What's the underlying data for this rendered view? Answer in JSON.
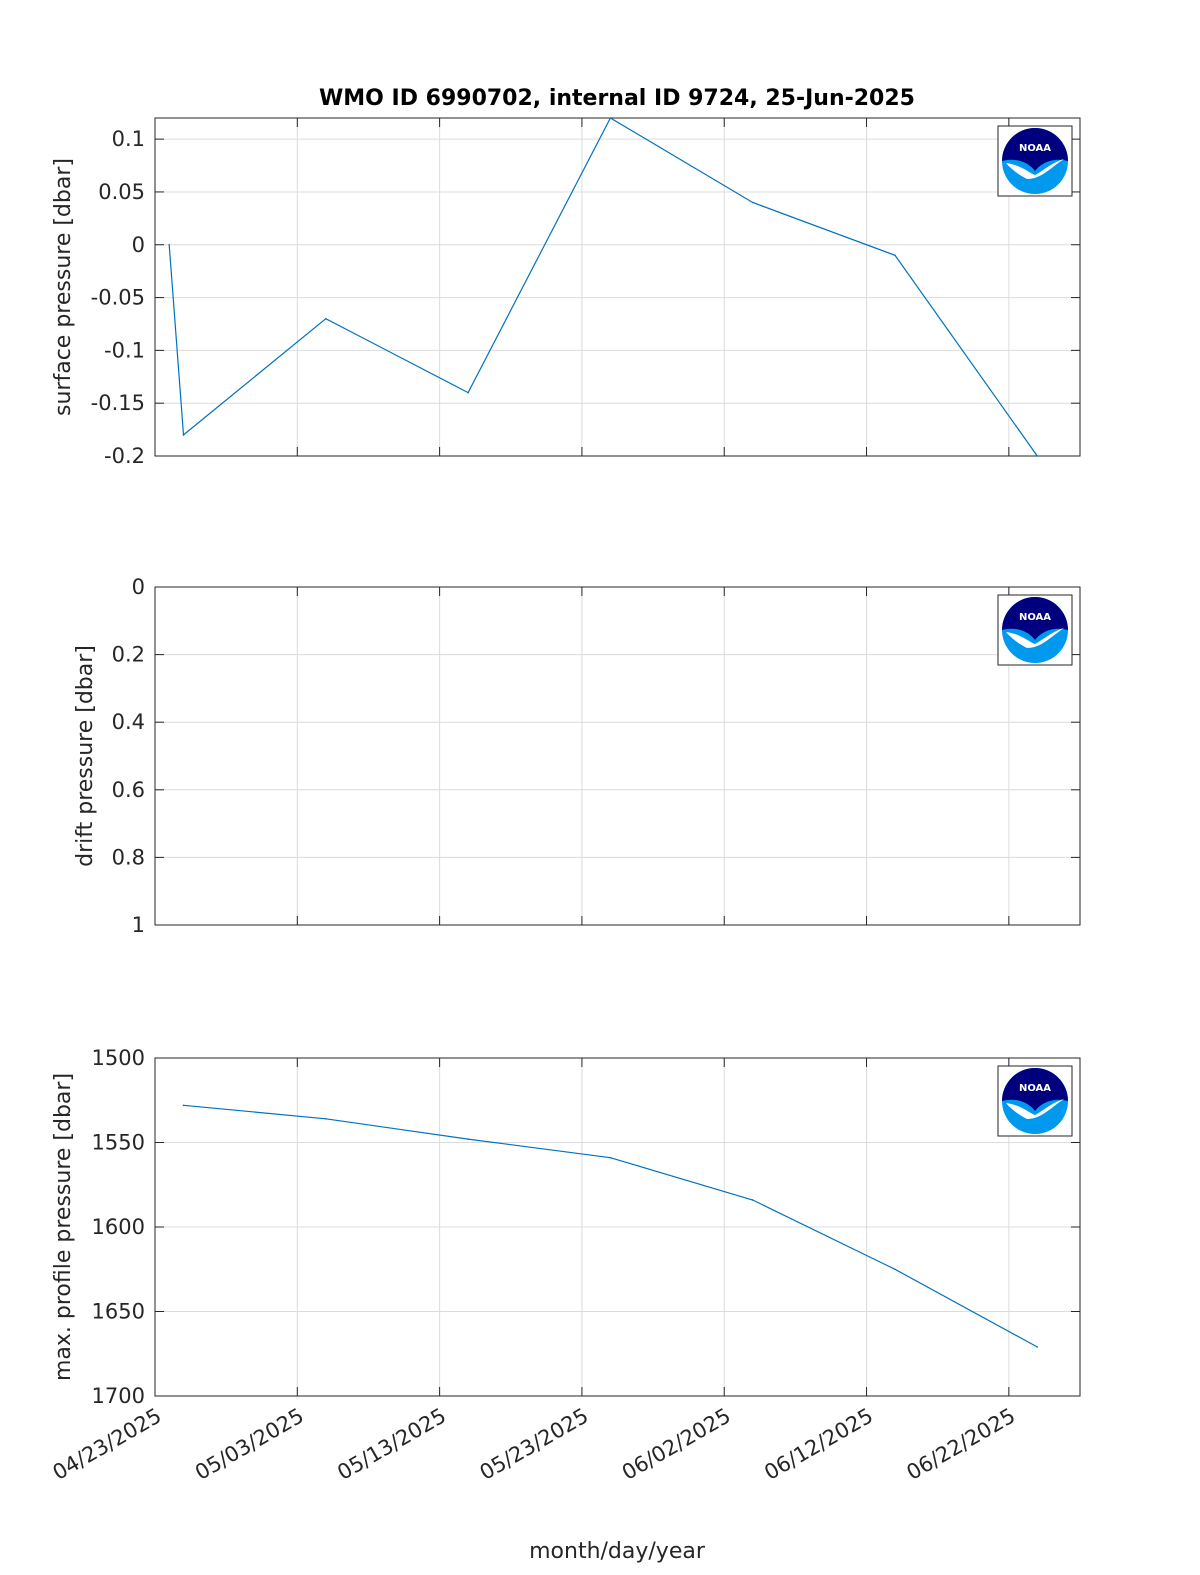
{
  "title": "WMO ID 6990702, internal ID 9724, 25-Jun-2025",
  "xlabel": "month/day/year",
  "logo_text": "NOAA",
  "colors": {
    "series": "#0072BD",
    "logo_dark": "#00007F",
    "logo_light": "#0099EE"
  },
  "chart_data": [
    {
      "type": "line",
      "ylabel": "surface pressure [dbar]",
      "ylim": [
        -0.2,
        0.12
      ],
      "yticks": [
        0.1,
        0.05,
        0,
        -0.05,
        -0.1,
        -0.15,
        -0.2
      ],
      "ytick_labels": [
        "0.1",
        "0.05",
        "0",
        "-0.05",
        "-0.1",
        "-0.15",
        "-0.2"
      ],
      "y_reversed": false,
      "x": [
        "04/24/2025",
        "04/25/2025",
        "05/05/2025",
        "05/15/2025",
        "05/25/2025",
        "06/04/2025",
        "06/14/2025",
        "06/24/2025"
      ],
      "y": [
        0,
        -0.18,
        -0.07,
        -0.14,
        0.12,
        0.04,
        -0.01,
        -0.2
      ],
      "grid": true
    },
    {
      "type": "line",
      "ylabel": "drift pressure [dbar]",
      "ylim": [
        0,
        1
      ],
      "yticks": [
        0,
        0.2,
        0.4,
        0.6,
        0.8,
        1
      ],
      "ytick_labels": [
        "0",
        "0.2",
        "0.4",
        "0.6",
        "0.8",
        "1"
      ],
      "y_reversed": true,
      "x": [],
      "y": [],
      "grid": true
    },
    {
      "type": "line",
      "ylabel": "max. profile pressure [dbar]",
      "ylim": [
        1500,
        1700
      ],
      "yticks": [
        1500,
        1550,
        1600,
        1650,
        1700
      ],
      "ytick_labels": [
        "1500",
        "1550",
        "1600",
        "1650",
        "1700"
      ],
      "y_reversed": true,
      "x": [
        "04/25/2025",
        "05/05/2025",
        "05/15/2025",
        "05/25/2025",
        "06/04/2025",
        "06/14/2025",
        "06/24/2025"
      ],
      "y": [
        1528,
        1536,
        1548,
        1559,
        1584,
        1625,
        1671
      ],
      "grid": true
    }
  ],
  "x_axis": {
    "xlim": [
      "04/23/2025",
      "06/27/2025"
    ],
    "ticks": [
      "04/23/2025",
      "05/03/2025",
      "05/13/2025",
      "05/23/2025",
      "06/02/2025",
      "06/12/2025",
      "06/22/2025"
    ]
  }
}
